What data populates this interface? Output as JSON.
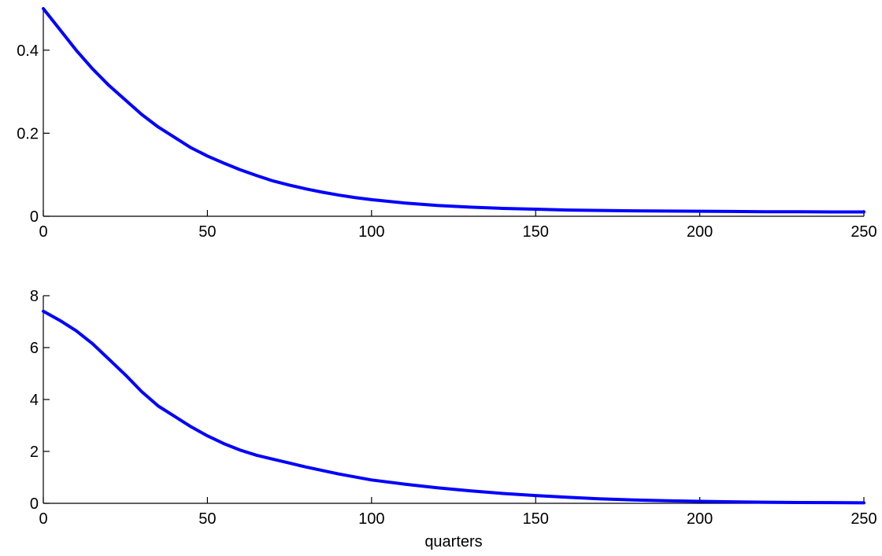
{
  "chart_data": [
    {
      "type": "line",
      "title": "",
      "xlabel": "",
      "ylabel": "",
      "xlim": [
        0,
        250
      ],
      "ylim": [
        0,
        0.5
      ],
      "xticks": [
        0,
        50,
        100,
        150,
        200,
        250
      ],
      "xtick_labels": [
        "0",
        "50",
        "100",
        "150",
        "200",
        "250"
      ],
      "yticks": [
        0,
        0.2,
        0.4
      ],
      "ytick_labels": [
        "0",
        "0.2",
        "0.4"
      ],
      "grid": false,
      "color": "#0000ff",
      "x": [
        0,
        5,
        10,
        15,
        20,
        25,
        30,
        35,
        40,
        45,
        50,
        55,
        60,
        65,
        70,
        75,
        80,
        85,
        90,
        95,
        100,
        110,
        120,
        130,
        140,
        150,
        160,
        170,
        180,
        190,
        200,
        210,
        220,
        230,
        240,
        250
      ],
      "y": [
        0.5,
        0.45,
        0.4,
        0.355,
        0.315,
        0.28,
        0.245,
        0.215,
        0.19,
        0.165,
        0.145,
        0.128,
        0.112,
        0.098,
        0.085,
        0.075,
        0.066,
        0.058,
        0.051,
        0.045,
        0.04,
        0.032,
        0.026,
        0.022,
        0.019,
        0.017,
        0.015,
        0.014,
        0.013,
        0.0125,
        0.012,
        0.0115,
        0.011,
        0.011,
        0.0105,
        0.0105
      ]
    },
    {
      "type": "line",
      "title": "",
      "xlabel": "quarters",
      "ylabel": "",
      "xlim": [
        0,
        250
      ],
      "ylim": [
        0,
        8
      ],
      "xticks": [
        0,
        50,
        100,
        150,
        200,
        250
      ],
      "xtick_labels": [
        "0",
        "50",
        "100",
        "150",
        "200",
        "250"
      ],
      "yticks": [
        0,
        2,
        4,
        6,
        8
      ],
      "ytick_labels": [
        "0",
        "2",
        "4",
        "6",
        "8"
      ],
      "grid": false,
      "color": "#0000ff",
      "x": [
        0,
        5,
        10,
        15,
        20,
        25,
        30,
        35,
        40,
        45,
        50,
        55,
        60,
        65,
        70,
        75,
        80,
        90,
        100,
        110,
        120,
        130,
        140,
        150,
        160,
        170,
        180,
        190,
        200,
        210,
        220,
        230,
        240,
        250
      ],
      "y": [
        7.4,
        7.05,
        6.65,
        6.15,
        5.55,
        4.95,
        4.3,
        3.75,
        3.35,
        2.95,
        2.6,
        2.3,
        2.05,
        1.85,
        1.7,
        1.55,
        1.4,
        1.13,
        0.9,
        0.74,
        0.6,
        0.48,
        0.38,
        0.3,
        0.23,
        0.17,
        0.13,
        0.1,
        0.075,
        0.055,
        0.04,
        0.03,
        0.025,
        0.02
      ]
    }
  ]
}
